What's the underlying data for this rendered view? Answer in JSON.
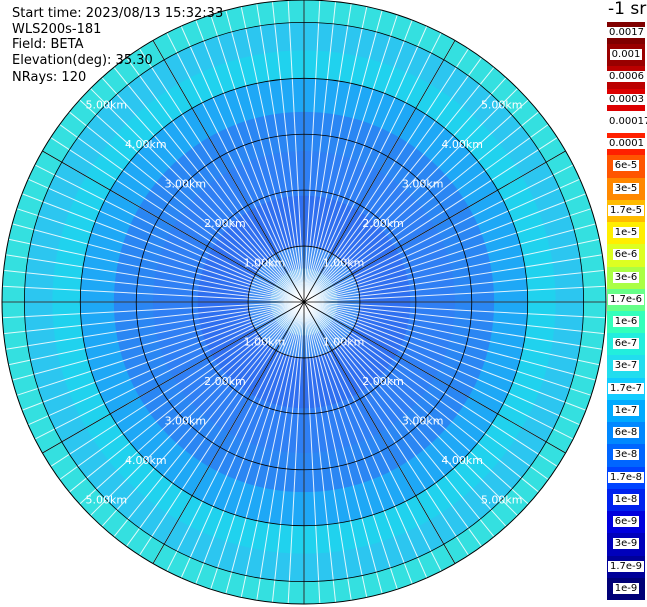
{
  "header": {
    "start_time": "Start time: 2023/08/13 15:32:33",
    "instrument": "WLS200s-181",
    "field": "Field: BETA",
    "elevation": "Elevation(deg): 35.30",
    "nrays": "NRays: 120"
  },
  "colorbar": {
    "unit": "-1 sr",
    "entries": [
      {
        "label": "0.0017",
        "color": "#800000"
      },
      {
        "label": "0.001",
        "color": "#990000"
      },
      {
        "label": "0.0006",
        "color": "#bb0000"
      },
      {
        "label": "0.0003",
        "color": "#dd0000"
      },
      {
        "label": "0.00017",
        "color": "#ffffff"
      },
      {
        "label": "0.0001",
        "color": "#ff2000"
      },
      {
        "label": "6e-5",
        "color": "#ff5500"
      },
      {
        "label": "3e-5",
        "color": "#ff8800"
      },
      {
        "label": "1.7e-5",
        "color": "#ffbb00"
      },
      {
        "label": "1e-5",
        "color": "#ffee00"
      },
      {
        "label": "6e-6",
        "color": "#ddff22"
      },
      {
        "label": "3e-6",
        "color": "#aaff44"
      },
      {
        "label": "1.7e-6",
        "color": "#66ff88"
      },
      {
        "label": "1e-6",
        "color": "#33ffbb"
      },
      {
        "label": "6e-7",
        "color": "#22eedd"
      },
      {
        "label": "3e-7",
        "color": "#22ddee"
      },
      {
        "label": "1.7e-7",
        "color": "#11ccff"
      },
      {
        "label": "1e-7",
        "color": "#00aaff"
      },
      {
        "label": "6e-8",
        "color": "#0088ff"
      },
      {
        "label": "3e-8",
        "color": "#0066ff"
      },
      {
        "label": "1.7e-8",
        "color": "#0044ff"
      },
      {
        "label": "1e-8",
        "color": "#0022ee"
      },
      {
        "label": "6e-9",
        "color": "#0000dd"
      },
      {
        "label": "3e-9",
        "color": "#0000bb"
      },
      {
        "label": "1.7e-9",
        "color": "#000099"
      },
      {
        "label": "1e-9",
        "color": "#000077"
      }
    ]
  },
  "chart_data": {
    "type": "heatmap",
    "projection": "polar (PPI scan)",
    "range_rings": [
      {
        "range_km": 1,
        "label": "1.00km"
      },
      {
        "range_km": 2,
        "label": "2.00km"
      },
      {
        "range_km": 3,
        "label": "3.00km"
      },
      {
        "range_km": 4,
        "label": "4.00km"
      },
      {
        "range_km": 5,
        "label": "5.00km"
      }
    ],
    "max_range_km": 5.4,
    "rays": 120,
    "ring_label_azimuths_deg": [
      315,
      45,
      225,
      135
    ],
    "radial_band_profile": [
      {
        "from_km": 0.0,
        "to_km": 0.6,
        "color": "#55aaf0"
      },
      {
        "from_km": 0.6,
        "to_km": 1.0,
        "color": "#3d8cf2"
      },
      {
        "from_km": 1.0,
        "to_km": 1.9,
        "color": "#2f6ff0"
      },
      {
        "from_km": 1.9,
        "to_km": 2.7,
        "color": "#2f7ff4"
      },
      {
        "from_km": 2.7,
        "to_km": 3.4,
        "color": "#2a86f3"
      },
      {
        "from_km": 3.4,
        "to_km": 4.0,
        "color": "#1ea8f6"
      },
      {
        "from_km": 4.0,
        "to_km": 4.5,
        "color": "#20d2ee"
      },
      {
        "from_km": 4.5,
        "to_km": 5.0,
        "color": "#2cc6f0"
      },
      {
        "from_km": 5.0,
        "to_km": 5.4,
        "color": "#34e0e0"
      }
    ]
  }
}
